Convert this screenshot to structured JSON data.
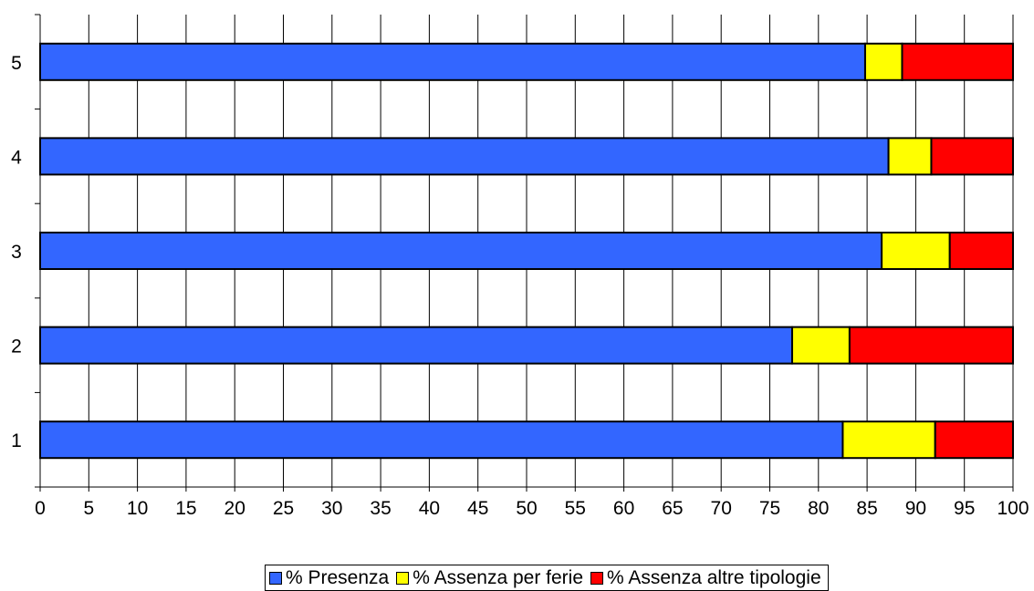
{
  "chart_data": {
    "type": "bar",
    "orientation": "horizontal",
    "stacked": true,
    "categories": [
      "1",
      "2",
      "3",
      "4",
      "5"
    ],
    "series": [
      {
        "name": "% Presenza",
        "color": "#3366ff",
        "values": [
          82.5,
          77.3,
          86.5,
          87.2,
          84.8
        ]
      },
      {
        "name": "% Assenza per ferie",
        "color": "#ffff00",
        "values": [
          9.5,
          5.9,
          7.0,
          4.4,
          3.8
        ]
      },
      {
        "name": "% Assenza altre tipologie",
        "color": "#ff0000",
        "values": [
          8.0,
          16.8,
          6.5,
          8.4,
          11.4
        ]
      }
    ],
    "x_ticks": [
      "0",
      "5",
      "10",
      "15",
      "20",
      "25",
      "30",
      "35",
      "40",
      "45",
      "50",
      "55",
      "60",
      "65",
      "70",
      "75",
      "80",
      "85",
      "90",
      "95",
      "100"
    ],
    "xlim": [
      0,
      100
    ],
    "grid": true,
    "legend_position": "bottom",
    "title": "",
    "xlabel": "",
    "ylabel": ""
  }
}
